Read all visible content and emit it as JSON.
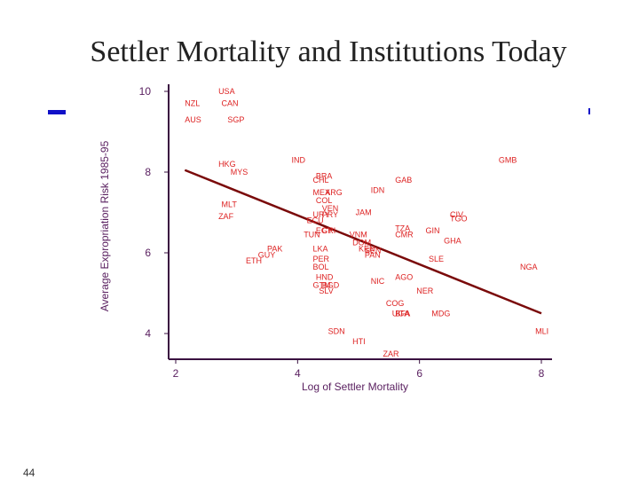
{
  "slide": {
    "title": "Settler Mortality and Institutions Today",
    "page_number": "44",
    "accent_color": "#1010c8"
  },
  "chart_data": {
    "type": "scatter",
    "title": "",
    "xlabel": "Log of Settler Mortality",
    "ylabel": "Average Expropriation Risk 1985-95",
    "xlim": [
      1.8,
      8.2
    ],
    "ylim": [
      3.4,
      10.2
    ],
    "xticks": [
      2,
      4,
      6,
      8
    ],
    "yticks": [
      4,
      6,
      8,
      10
    ],
    "grid": false,
    "point_color": "#dd2222",
    "axis_color": "#3a1040",
    "label_color": "#5a2060",
    "fit_color": "#7a0a0a",
    "fit_line": {
      "x": [
        2.15,
        8.0
      ],
      "y": [
        8.05,
        4.5
      ]
    },
    "points": [
      {
        "label": "USA",
        "x": 2.7,
        "y": 10.0
      },
      {
        "label": "NZL",
        "x": 2.15,
        "y": 9.7
      },
      {
        "label": "CAN",
        "x": 2.75,
        "y": 9.7
      },
      {
        "label": "AUS",
        "x": 2.15,
        "y": 9.3
      },
      {
        "label": "SGP",
        "x": 2.85,
        "y": 9.3
      },
      {
        "label": "IND",
        "x": 3.9,
        "y": 8.3
      },
      {
        "label": "GMB",
        "x": 7.3,
        "y": 8.3
      },
      {
        "label": "HKG",
        "x": 2.7,
        "y": 8.2
      },
      {
        "label": "MYS",
        "x": 2.9,
        "y": 8.0
      },
      {
        "label": "BRA",
        "x": 4.3,
        "y": 7.9
      },
      {
        "label": "CHL",
        "x": 4.25,
        "y": 7.8
      },
      {
        "label": "GAB",
        "x": 5.6,
        "y": 7.8
      },
      {
        "label": "IDN",
        "x": 5.2,
        "y": 7.55
      },
      {
        "label": "MEX",
        "x": 4.25,
        "y": 7.5
      },
      {
        "label": "ARG",
        "x": 4.45,
        "y": 7.5
      },
      {
        "label": "COL",
        "x": 4.3,
        "y": 7.3
      },
      {
        "label": "MLT",
        "x": 2.75,
        "y": 7.2
      },
      {
        "label": "VEN",
        "x": 4.4,
        "y": 7.1
      },
      {
        "label": "JAM",
        "x": 4.95,
        "y": 7.0
      },
      {
        "label": "URY",
        "x": 4.25,
        "y": 6.95
      },
      {
        "label": "PRY",
        "x": 4.4,
        "y": 6.95
      },
      {
        "label": "ZAF",
        "x": 2.7,
        "y": 6.9
      },
      {
        "label": "CIV",
        "x": 6.5,
        "y": 6.95
      },
      {
        "label": "TGO",
        "x": 6.5,
        "y": 6.85
      },
      {
        "label": "ECU",
        "x": 4.15,
        "y": 6.8
      },
      {
        "label": "TZA",
        "x": 5.6,
        "y": 6.6
      },
      {
        "label": "GIN",
        "x": 6.1,
        "y": 6.55
      },
      {
        "label": "EGY",
        "x": 4.3,
        "y": 6.55
      },
      {
        "label": "CRI",
        "x": 4.4,
        "y": 6.55
      },
      {
        "label": "TUN",
        "x": 4.1,
        "y": 6.45
      },
      {
        "label": "CMR",
        "x": 5.6,
        "y": 6.45
      },
      {
        "label": "VNM",
        "x": 4.85,
        "y": 6.45
      },
      {
        "label": "GHA",
        "x": 6.4,
        "y": 6.3
      },
      {
        "label": "DOM",
        "x": 4.9,
        "y": 6.25
      },
      {
        "label": "PAK",
        "x": 3.5,
        "y": 6.1
      },
      {
        "label": "LKA",
        "x": 4.25,
        "y": 6.1
      },
      {
        "label": "KEN",
        "x": 5.0,
        "y": 6.1
      },
      {
        "label": "SEN",
        "x": 5.1,
        "y": 6.05
      },
      {
        "label": "PAN",
        "x": 5.1,
        "y": 5.95
      },
      {
        "label": "GUY",
        "x": 3.35,
        "y": 5.95
      },
      {
        "label": "SLE",
        "x": 6.15,
        "y": 5.85
      },
      {
        "label": "PER",
        "x": 4.25,
        "y": 5.85
      },
      {
        "label": "ETH",
        "x": 3.15,
        "y": 5.8
      },
      {
        "label": "BOL",
        "x": 4.25,
        "y": 5.65
      },
      {
        "label": "NGA",
        "x": 7.65,
        "y": 5.65
      },
      {
        "label": "AGO",
        "x": 5.6,
        "y": 5.4
      },
      {
        "label": "HND",
        "x": 4.3,
        "y": 5.4
      },
      {
        "label": "NIC",
        "x": 5.2,
        "y": 5.3
      },
      {
        "label": "GTM",
        "x": 4.25,
        "y": 5.2
      },
      {
        "label": "BGD",
        "x": 4.4,
        "y": 5.2
      },
      {
        "label": "NER",
        "x": 5.95,
        "y": 5.05
      },
      {
        "label": "SLV",
        "x": 4.35,
        "y": 5.05
      },
      {
        "label": "COG",
        "x": 5.45,
        "y": 4.75
      },
      {
        "label": "SDN",
        "x": 4.5,
        "y": 4.05
      },
      {
        "label": "MDG",
        "x": 6.2,
        "y": 4.5
      },
      {
        "label": "BFA",
        "x": 5.6,
        "y": 4.5
      },
      {
        "label": "UGA",
        "x": 5.55,
        "y": 4.5
      },
      {
        "label": "MLI",
        "x": 7.9,
        "y": 4.05
      },
      {
        "label": "HTI",
        "x": 4.9,
        "y": 3.8
      },
      {
        "label": "ZAR",
        "x": 5.4,
        "y": 3.5
      }
    ]
  }
}
